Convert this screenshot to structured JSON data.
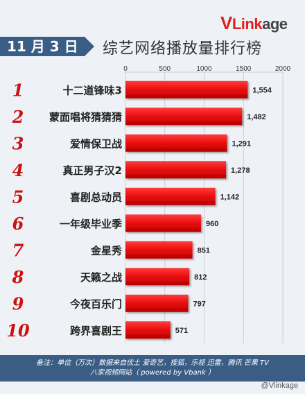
{
  "header": {
    "date": "11 月 3 日",
    "title": "综艺网络播放量排行榜",
    "logo_v": "V",
    "logo_mid": "Link",
    "logo_end": "age"
  },
  "colors": {
    "bar": "#ee1111",
    "accent": "#3a5d86",
    "rank": "#cc1111"
  },
  "chart_data": {
    "type": "bar",
    "orientation": "horizontal",
    "categories": [
      "十二道锋味3",
      "蒙面唱将猜猜猜",
      "爱情保卫战",
      "真正男子汉2",
      "喜剧总动员",
      "一年级毕业季",
      "金星秀",
      "天籁之战",
      "今夜百乐门",
      "跨界喜剧王"
    ],
    "ranks": [
      "1",
      "2",
      "3",
      "4",
      "5",
      "6",
      "7",
      "8",
      "9",
      "10"
    ],
    "values": [
      1554,
      1482,
      1291,
      1278,
      1142,
      960,
      851,
      812,
      797,
      571
    ],
    "value_labels": [
      "1,554",
      "1,482",
      "1,291",
      "1,278",
      "1,142",
      "960",
      "851",
      "812",
      "797",
      "571"
    ],
    "xlim": [
      0,
      2000
    ],
    "xticks": [
      0,
      500,
      1000,
      1500,
      2000
    ],
    "xtick_labels": [
      "0",
      "500",
      "1000",
      "1500",
      "2000"
    ],
    "grid": true
  },
  "footer": {
    "line1": "备注：单位（万次）数据来自优土 爱奇艺，搜狐，乐视 迅雷，腾讯 芒果 TV",
    "line2": "八家视频网站（ powered by Vbank ）"
  },
  "watermark": "@Vlinkage"
}
